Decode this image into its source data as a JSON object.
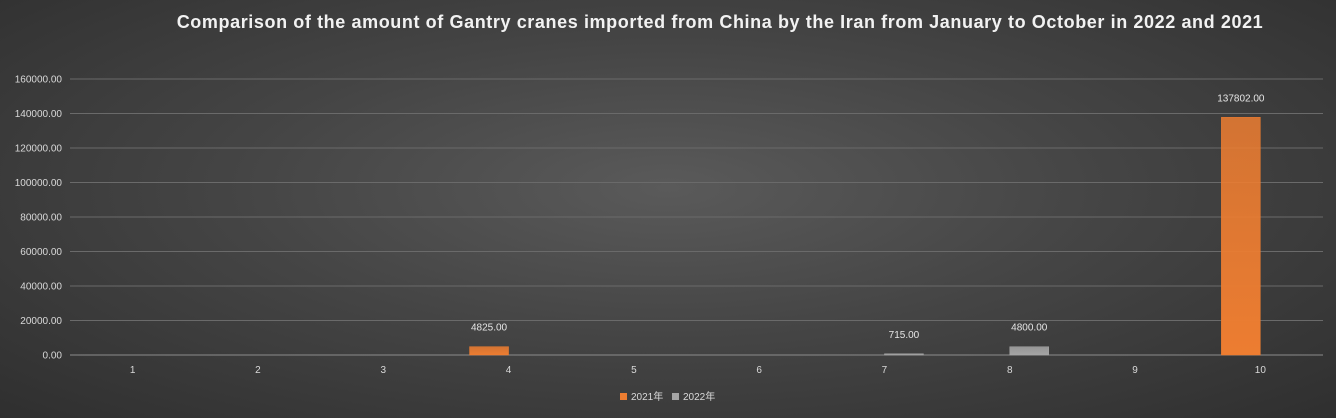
{
  "chart_data": {
    "type": "bar",
    "title": "Comparison of the amount of Gantry cranes imported from China by the Iran from January to October in 2022 and 2021",
    "categories": [
      "1",
      "2",
      "3",
      "4",
      "5",
      "6",
      "7",
      "8",
      "9",
      "10"
    ],
    "series": [
      {
        "name": "2021年",
        "color": "#ed7d31",
        "values": [
          0,
          0,
          0,
          4825,
          0,
          0,
          0,
          0,
          0,
          137802
        ],
        "labels": [
          "",
          "",
          "",
          "4825.00",
          "",
          "",
          "",
          "",
          "",
          "137802.00"
        ]
      },
      {
        "name": "2022年",
        "color": "#a5a5a5",
        "values": [
          0,
          0,
          0,
          0,
          0,
          0,
          715,
          4800,
          0,
          0
        ],
        "labels": [
          "",
          "",
          "",
          "",
          "",
          "",
          "715.00",
          "4800.00",
          "",
          ""
        ]
      }
    ],
    "ylim": [
      0,
      160000
    ],
    "yticks": [
      "0.00",
      "20000.00",
      "40000.00",
      "60000.00",
      "80000.00",
      "100000.00",
      "120000.00",
      "140000.00",
      "160000.00"
    ],
    "xlabel": "",
    "ylabel": "",
    "grid": true,
    "legend_position": "bottom"
  }
}
